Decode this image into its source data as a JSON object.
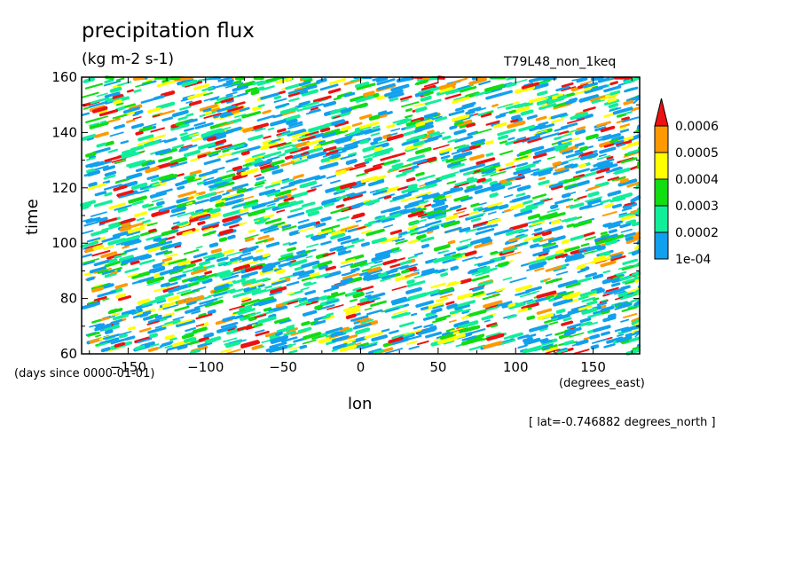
{
  "chart_data": {
    "type": "heatmap",
    "title": "precipitation flux",
    "units": "(kg m-2 s-1)",
    "run_label": "T79L48_non_1keq",
    "xlabel": "lon",
    "x_units": "(degrees_east)",
    "ylabel": "time",
    "y_units": "(days since 0000-01-01)",
    "annotation": "[ lat=-0.746882 degrees_north ]",
    "xlim": [
      -180,
      180
    ],
    "ylim": [
      60,
      160
    ],
    "x_ticks": [
      -150,
      -100,
      -50,
      0,
      50,
      100,
      150
    ],
    "y_ticks": [
      60,
      80,
      100,
      120,
      140,
      160
    ],
    "grid": false,
    "legend_position": "right",
    "colorbar": {
      "levels": [
        "1e-04",
        "0.0002",
        "0.0003",
        "0.0004",
        "0.0005",
        "0.0006"
      ],
      "colors": [
        "#11a0ee",
        "#11ee99",
        "#11dd11",
        "#ffff00",
        "#ff9900",
        "#ee1111"
      ],
      "extend": "max"
    }
  }
}
